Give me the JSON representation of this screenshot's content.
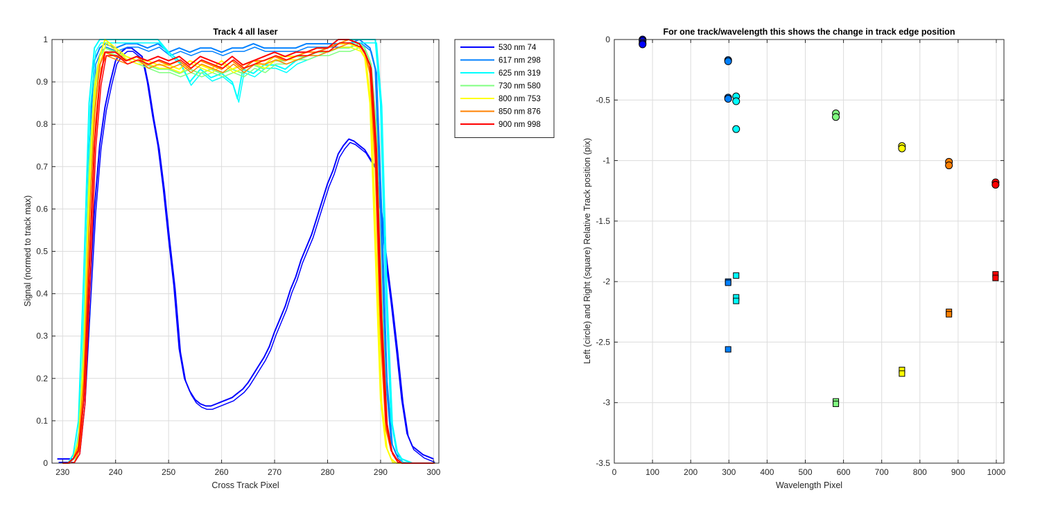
{
  "chart_data": [
    {
      "type": "line",
      "title": "Track 4  all laser",
      "xlabel": "Cross Track Pixel",
      "ylabel": "Signal (normed to track max)",
      "xlim": [
        228,
        301
      ],
      "ylim": [
        0,
        1
      ],
      "xticks": [
        230,
        240,
        250,
        260,
        270,
        280,
        290,
        300
      ],
      "yticks": [
        0,
        0.1,
        0.2,
        0.3,
        0.4,
        0.5,
        0.6,
        0.7,
        0.8,
        0.9,
        1
      ],
      "grid": true,
      "legend_position": "outside-top-right",
      "series": [
        {
          "name": "530 nm 74",
          "color": "#0000ff",
          "x": [
            229,
            231,
            232,
            233,
            234,
            235,
            236,
            237,
            238,
            239,
            240,
            241,
            242,
            243,
            244,
            245,
            246,
            247,
            248,
            249,
            250,
            251,
            252,
            253,
            254,
            255,
            256,
            257,
            258,
            259,
            260,
            261,
            262,
            263,
            264,
            265,
            266,
            267,
            268,
            269,
            270,
            271,
            272,
            273,
            274,
            275,
            276,
            277,
            278,
            279,
            280,
            281,
            282,
            283,
            284,
            285,
            286,
            287,
            288,
            289,
            290,
            291,
            292,
            293,
            294,
            295,
            296,
            297,
            298,
            299,
            300
          ],
          "y": [
            0.01,
            0.01,
            0.01,
            0.03,
            0.15,
            0.38,
            0.6,
            0.75,
            0.84,
            0.9,
            0.95,
            0.97,
            0.98,
            0.98,
            0.97,
            0.96,
            0.9,
            0.82,
            0.75,
            0.65,
            0.53,
            0.42,
            0.27,
            0.2,
            0.17,
            0.15,
            0.14,
            0.135,
            0.135,
            0.14,
            0.145,
            0.15,
            0.155,
            0.165,
            0.175,
            0.19,
            0.21,
            0.23,
            0.25,
            0.275,
            0.31,
            0.34,
            0.37,
            0.41,
            0.44,
            0.48,
            0.51,
            0.54,
            0.58,
            0.62,
            0.66,
            0.69,
            0.73,
            0.75,
            0.765,
            0.76,
            0.75,
            0.74,
            0.72,
            0.7,
            0.6,
            0.48,
            0.38,
            0.27,
            0.15,
            0.07,
            0.04,
            0.03,
            0.02,
            0.015,
            0.01
          ]
        },
        {
          "name": "617 nm 298",
          "color": "#0080ff",
          "x": [
            230,
            231,
            232,
            233,
            234,
            235,
            236,
            237,
            238,
            240,
            242,
            244,
            246,
            248,
            250,
            252,
            254,
            256,
            258,
            260,
            262,
            264,
            266,
            268,
            270,
            272,
            274,
            276,
            278,
            280,
            282,
            284,
            286,
            287,
            288,
            289,
            290,
            291,
            292,
            293,
            294,
            296,
            298,
            300
          ],
          "y": [
            0,
            0,
            0.01,
            0.05,
            0.3,
            0.75,
            0.95,
            0.98,
            0.99,
            0.98,
            0.99,
            0.99,
            0.98,
            0.99,
            0.97,
            0.98,
            0.97,
            0.98,
            0.98,
            0.97,
            0.98,
            0.98,
            0.99,
            0.98,
            0.98,
            0.98,
            0.98,
            0.99,
            0.99,
            0.99,
            0.99,
            0.99,
            1.0,
            0.99,
            0.98,
            0.93,
            0.6,
            0.2,
            0.05,
            0.02,
            0.01,
            0,
            0,
            0
          ]
        },
        {
          "name": "625 nm 319",
          "color": "#00ffff",
          "x": [
            230,
            231,
            232,
            233,
            234,
            235,
            236,
            237,
            238,
            240,
            242,
            244,
            246,
            248,
            250,
            252,
            254,
            256,
            258,
            260,
            262,
            263,
            264,
            266,
            268,
            270,
            272,
            274,
            276,
            278,
            280,
            282,
            284,
            286,
            287,
            288,
            289,
            290,
            291,
            292,
            293,
            294,
            296,
            298,
            300
          ],
          "y": [
            0,
            0,
            0.02,
            0.1,
            0.45,
            0.85,
            0.98,
            1.0,
            1.0,
            1.0,
            1.0,
            1.0,
            1.0,
            1.0,
            0.97,
            0.95,
            0.9,
            0.93,
            0.91,
            0.92,
            0.9,
            0.86,
            0.93,
            0.92,
            0.94,
            0.94,
            0.93,
            0.95,
            0.96,
            0.97,
            0.98,
            1.0,
            1.0,
            1.0,
            1.0,
            1.0,
            1.0,
            0.85,
            0.4,
            0.1,
            0.03,
            0.01,
            0,
            0,
            0
          ]
        },
        {
          "name": "730 nm 580",
          "color": "#80ff80",
          "x": [
            230,
            231,
            232,
            233,
            234,
            235,
            236,
            237,
            238,
            240,
            242,
            244,
            246,
            248,
            250,
            252,
            254,
            256,
            258,
            260,
            262,
            264,
            266,
            268,
            270,
            272,
            274,
            276,
            278,
            280,
            282,
            284,
            286,
            287,
            288,
            289,
            290,
            291,
            292,
            293,
            294,
            296,
            298,
            300
          ],
          "y": [
            0,
            0,
            0.01,
            0.06,
            0.3,
            0.7,
            0.9,
            0.96,
            0.98,
            0.97,
            0.96,
            0.95,
            0.94,
            0.93,
            0.93,
            0.92,
            0.93,
            0.92,
            0.93,
            0.92,
            0.93,
            0.92,
            0.94,
            0.93,
            0.95,
            0.95,
            0.96,
            0.96,
            0.97,
            0.97,
            0.98,
            0.98,
            0.99,
            0.98,
            0.95,
            0.8,
            0.4,
            0.1,
            0.03,
            0.01,
            0,
            0,
            0,
            0
          ]
        },
        {
          "name": "800 nm 753",
          "color": "#ffff00",
          "x": [
            230,
            231,
            232,
            233,
            234,
            235,
            236,
            237,
            238,
            240,
            242,
            244,
            246,
            248,
            250,
            252,
            254,
            256,
            258,
            260,
            262,
            264,
            266,
            268,
            270,
            272,
            274,
            276,
            278,
            280,
            282,
            284,
            286,
            287,
            288,
            289,
            290,
            291,
            292,
            293,
            294,
            296,
            298,
            300
          ],
          "y": [
            0,
            0,
            0.01,
            0.05,
            0.25,
            0.65,
            0.88,
            0.96,
            1.0,
            0.98,
            0.96,
            0.95,
            0.95,
            0.94,
            0.94,
            0.93,
            0.95,
            0.94,
            0.93,
            0.95,
            0.93,
            0.94,
            0.95,
            0.94,
            0.96,
            0.96,
            0.96,
            0.97,
            0.98,
            0.98,
            0.99,
            0.99,
            0.98,
            0.96,
            0.85,
            0.5,
            0.15,
            0.04,
            0.01,
            0,
            0,
            0,
            0,
            0
          ]
        },
        {
          "name": "850 nm 876",
          "color": "#ff8000",
          "x": [
            230,
            231,
            232,
            233,
            234,
            235,
            236,
            237,
            238,
            240,
            242,
            244,
            246,
            248,
            250,
            252,
            254,
            256,
            258,
            260,
            262,
            264,
            266,
            268,
            270,
            272,
            274,
            276,
            278,
            280,
            282,
            284,
            286,
            287,
            288,
            289,
            290,
            291,
            292,
            293,
            294,
            296,
            298,
            300
          ],
          "y": [
            0,
            0,
            0.01,
            0.04,
            0.2,
            0.55,
            0.82,
            0.94,
            0.97,
            0.96,
            0.95,
            0.96,
            0.94,
            0.95,
            0.94,
            0.95,
            0.93,
            0.95,
            0.94,
            0.93,
            0.95,
            0.93,
            0.95,
            0.95,
            0.96,
            0.95,
            0.96,
            0.97,
            0.97,
            0.98,
            0.99,
            1.0,
            0.99,
            0.97,
            0.92,
            0.7,
            0.3,
            0.08,
            0.03,
            0.01,
            0,
            0,
            0,
            0
          ]
        },
        {
          "name": "900 nm 998",
          "color": "#ff0000",
          "x": [
            230,
            231,
            232,
            233,
            234,
            235,
            236,
            237,
            238,
            240,
            242,
            244,
            246,
            248,
            250,
            252,
            254,
            256,
            258,
            260,
            262,
            264,
            266,
            268,
            270,
            272,
            274,
            276,
            278,
            280,
            282,
            284,
            286,
            287,
            288,
            289,
            290,
            291,
            292,
            293,
            294,
            296,
            298,
            300
          ],
          "y": [
            0,
            0,
            0.01,
            0.03,
            0.15,
            0.45,
            0.75,
            0.9,
            0.97,
            0.97,
            0.95,
            0.96,
            0.95,
            0.96,
            0.95,
            0.96,
            0.94,
            0.96,
            0.95,
            0.94,
            0.96,
            0.94,
            0.95,
            0.96,
            0.97,
            0.96,
            0.97,
            0.97,
            0.98,
            0.98,
            1.0,
            1.0,
            0.99,
            0.97,
            0.94,
            0.75,
            0.35,
            0.1,
            0.03,
            0.01,
            0,
            0,
            0,
            0
          ]
        }
      ]
    },
    {
      "type": "scatter",
      "title": "For one track/wavelength this shows the change in track edge position",
      "xlabel": "Wavelength Pixel",
      "ylabel": "Left (circle) and Right (square) Relative Track position (pix)",
      "xlim": [
        0,
        1020
      ],
      "ylim": [
        -3.5,
        0
      ],
      "xticks": [
        0,
        100,
        200,
        300,
        400,
        500,
        600,
        700,
        800,
        900,
        1000
      ],
      "yticks": [
        -3.5,
        -3,
        -2.5,
        -2,
        -1.5,
        -1,
        -0.5,
        0
      ],
      "grid": true,
      "series": [
        {
          "color": "#0000ff",
          "circles": [
            [
              74,
              0
            ],
            [
              74,
              -0.01
            ],
            [
              74,
              -0.03
            ],
            [
              74,
              -0.04
            ]
          ],
          "squares": []
        },
        {
          "color": "#0080ff",
          "circles": [
            [
              298,
              -0.17
            ],
            [
              298,
              -0.18
            ],
            [
              298,
              -0.48
            ],
            [
              298,
              -0.49
            ]
          ],
          "squares": [
            [
              298,
              -2.0
            ],
            [
              298,
              -2.01
            ],
            [
              298,
              -2.56
            ]
          ]
        },
        {
          "color": "#00ffff",
          "circles": [
            [
              319,
              -0.47
            ],
            [
              319,
              -0.51
            ],
            [
              319,
              -0.74
            ]
          ],
          "squares": [
            [
              319,
              -1.95
            ],
            [
              319,
              -2.13
            ],
            [
              319,
              -2.16
            ]
          ]
        },
        {
          "color": "#80ff80",
          "circles": [
            [
              580,
              -0.61
            ],
            [
              580,
              -0.64
            ]
          ],
          "squares": [
            [
              580,
              -2.99
            ],
            [
              580,
              -3.01
            ]
          ]
        },
        {
          "color": "#ffff00",
          "circles": [
            [
              753,
              -0.88
            ],
            [
              753,
              -0.9
            ]
          ],
          "squares": [
            [
              753,
              -2.73
            ],
            [
              753,
              -2.76
            ]
          ]
        },
        {
          "color": "#ff8000",
          "circles": [
            [
              876,
              -1.01
            ],
            [
              876,
              -1.04
            ]
          ],
          "squares": [
            [
              876,
              -2.25
            ],
            [
              876,
              -2.27
            ]
          ]
        },
        {
          "color": "#ff0000",
          "circles": [
            [
              998,
              -1.18
            ],
            [
              998,
              -1.2
            ]
          ],
          "squares": [
            [
              998,
              -1.94
            ],
            [
              998,
              -1.97
            ]
          ]
        }
      ]
    }
  ]
}
